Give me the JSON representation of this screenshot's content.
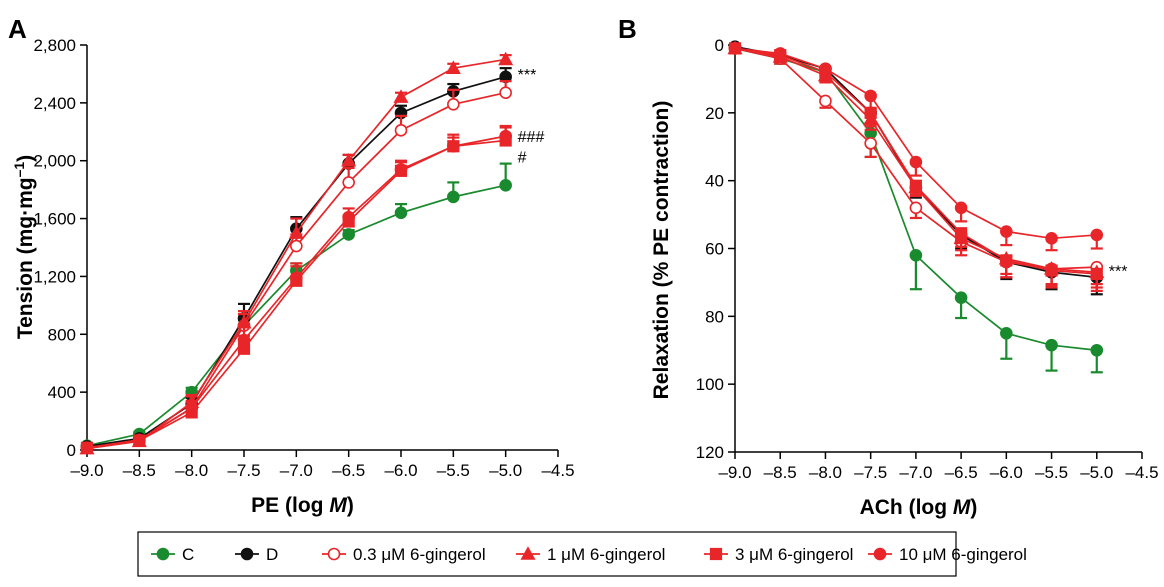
{
  "chart_data": [
    {
      "type": "line",
      "panel_label": "A",
      "xlabel": "PE (log ",
      "xlabel_unit": "M",
      "xlabel_close": ")",
      "ylabel": "Tension (mg·mg",
      "ylabel_sup": "–1",
      "ylabel_close": ")",
      "xlim": [
        -9.0,
        -4.5
      ],
      "ylim": [
        0,
        2800
      ],
      "x_ticks": [
        -9.0,
        -8.5,
        -8.0,
        -7.5,
        -7.0,
        -6.5,
        -6.0,
        -5.5,
        -5.0,
        -4.5
      ],
      "x_tick_labels": [
        "–9.0",
        "–8.5",
        "–8.0",
        "–7.5",
        "–7.0",
        "–6.5",
        "–6.0",
        "–5.5",
        "–5.0",
        "–4.5"
      ],
      "y_ticks": [
        0,
        400,
        800,
        1200,
        1600,
        2000,
        2400,
        2800
      ],
      "y_tick_labels": [
        "0",
        "400",
        "800",
        "1,200",
        "1,600",
        "2,000",
        "2,400",
        "2,800"
      ],
      "y_inverted": false,
      "x": [
        -9.0,
        -8.5,
        -8.0,
        -7.5,
        -7.0,
        -6.5,
        -6.0,
        -5.5,
        -5.0
      ],
      "series": [
        {
          "legend_index": 0,
          "values": [
            30,
            110,
            400,
            860,
            1240,
            1490,
            1640,
            1750,
            1830
          ],
          "errors": [
            10,
            15,
            30,
            40,
            50,
            30,
            60,
            100,
            150
          ]
        },
        {
          "legend_index": 1,
          "values": [
            25,
            80,
            320,
            910,
            1530,
            1980,
            2330,
            2480,
            2580
          ],
          "errors": [
            10,
            15,
            40,
            100,
            80,
            60,
            50,
            50,
            60
          ]
        },
        {
          "legend_index": 2,
          "values": [
            15,
            70,
            290,
            860,
            1410,
            1850,
            2210,
            2390,
            2470
          ],
          "errors": [
            10,
            15,
            40,
            80,
            80,
            100,
            100,
            100,
            80
          ]
        },
        {
          "legend_index": 3,
          "values": [
            10,
            60,
            330,
            880,
            1500,
            2000,
            2440,
            2640,
            2700
          ],
          "errors": [
            10,
            15,
            40,
            80,
            100,
            40,
            30,
            30,
            30
          ]
        },
        {
          "legend_index": 4,
          "values": [
            15,
            65,
            260,
            700,
            1170,
            1580,
            1930,
            2100,
            2140
          ],
          "errors": [
            10,
            15,
            80,
            90,
            100,
            40,
            60,
            80,
            100
          ]
        },
        {
          "legend_index": 5,
          "values": [
            15,
            65,
            290,
            760,
            1190,
            1610,
            1940,
            2100,
            2170
          ],
          "errors": [
            10,
            15,
            90,
            100,
            100,
            60,
            60,
            60,
            60
          ]
        }
      ],
      "annotations": [
        {
          "text": "***",
          "x": -5.0,
          "y": 2600
        },
        {
          "text": "###",
          "x": -5.0,
          "y": 2170
        },
        {
          "text": "#",
          "x": -5.0,
          "y": 2030
        }
      ]
    },
    {
      "type": "line",
      "panel_label": "B",
      "xlabel": "ACh (log ",
      "xlabel_unit": "M",
      "xlabel_close": ")",
      "ylabel": "Relaxation (% PE contraction)",
      "xlim": [
        -9.0,
        -4.5
      ],
      "ylim": [
        0,
        120
      ],
      "x_ticks": [
        -9.0,
        -8.5,
        -8.0,
        -7.5,
        -7.0,
        -6.5,
        -6.0,
        -5.5,
        -5.0,
        -4.5
      ],
      "x_tick_labels": [
        "–9.0",
        "–8.5",
        "–8.0",
        "–7.5",
        "–7.0",
        "–6.5",
        "–6.0",
        "–5.5",
        "–5.0",
        "–4.5"
      ],
      "y_ticks": [
        0,
        20,
        40,
        60,
        80,
        100,
        120
      ],
      "y_tick_labels": [
        "0",
        "20",
        "40",
        "60",
        "80",
        "100",
        "120"
      ],
      "y_inverted": true,
      "x": [
        -9.0,
        -8.5,
        -8.0,
        -7.5,
        -7.0,
        -6.5,
        -6.0,
        -5.5,
        -5.0
      ],
      "series": [
        {
          "legend_index": 0,
          "values": [
            1,
            4,
            8,
            26,
            62,
            74.5,
            85,
            88.5,
            90
          ],
          "errors": [
            1,
            1.5,
            3,
            7,
            10,
            6,
            7.5,
            7.5,
            6.5
          ]
        },
        {
          "legend_index": 1,
          "values": [
            0.5,
            3,
            7,
            20,
            42,
            56,
            64,
            67,
            68.5
          ],
          "errors": [
            1,
            1.5,
            2,
            3,
            3,
            4,
            5,
            5,
            5
          ]
        },
        {
          "legend_index": 2,
          "values": [
            1,
            4,
            16.5,
            29,
            48,
            58,
            64,
            66,
            65.5
          ],
          "errors": [
            1,
            1.5,
            2,
            4,
            3,
            4,
            4.5,
            5,
            5
          ]
        },
        {
          "legend_index": 3,
          "values": [
            1,
            3.5,
            9,
            22,
            42,
            57,
            63,
            66,
            67
          ],
          "errors": [
            1,
            1.5,
            2,
            3,
            2.5,
            3.5,
            4.5,
            4.5,
            4.5
          ]
        },
        {
          "legend_index": 4,
          "values": [
            1,
            3,
            8,
            20,
            41.5,
            55.5,
            63.5,
            66.5,
            67.5
          ],
          "errors": [
            1,
            2,
            3,
            4,
            2.5,
            4,
            5,
            5,
            5
          ]
        },
        {
          "legend_index": 5,
          "values": [
            1,
            2.5,
            7,
            15,
            34.5,
            48,
            55,
            57,
            56
          ],
          "errors": [
            1,
            2,
            3,
            4,
            4,
            4,
            4,
            3.5,
            4
          ]
        }
      ],
      "annotations": [
        {
          "text": "***",
          "x": -5.0,
          "y": 66.5
        }
      ]
    }
  ],
  "legend": [
    {
      "label": "C",
      "color": "#1a8a2e",
      "marker": "circle",
      "filled": true
    },
    {
      "label": "D",
      "color": "#111111",
      "marker": "circle",
      "filled": true
    },
    {
      "label": "0.3 μM 6-gingerol",
      "color": "#e8262a",
      "marker": "circle",
      "filled": false
    },
    {
      "label": "1 μM 6-gingerol",
      "color": "#e8262a",
      "marker": "triangle",
      "filled": true
    },
    {
      "label": "3 μM 6-gingerol",
      "color": "#e8262a",
      "marker": "square",
      "filled": true
    },
    {
      "label": "10 μM 6-gingerol",
      "color": "#e8262a",
      "marker": "circle",
      "filled": true
    }
  ]
}
